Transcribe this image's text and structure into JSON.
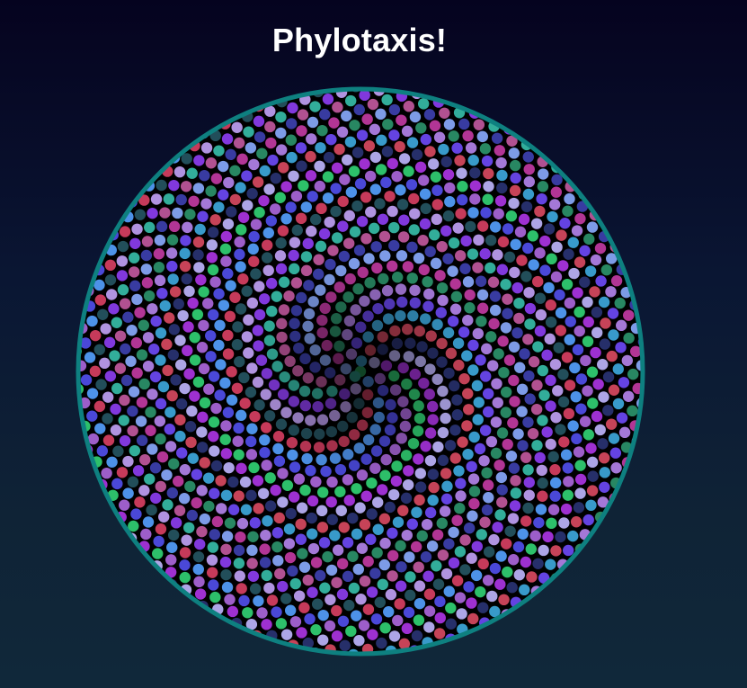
{
  "page": {
    "title": "Phylotaxis!"
  },
  "pattern": {
    "kind": "phyllotaxis",
    "background_color": "#000000",
    "border_color": "#0e8080",
    "dot_count": 1500,
    "golden_angle_deg": 137.507764,
    "color_cycle": [
      "#2dc06a",
      "#3b8ee8",
      "#b9a7e6",
      "#9a60d0",
      "#d03c3c",
      "#9b2fd8",
      "#4e4be6",
      "#1f2a55"
    ]
  }
}
